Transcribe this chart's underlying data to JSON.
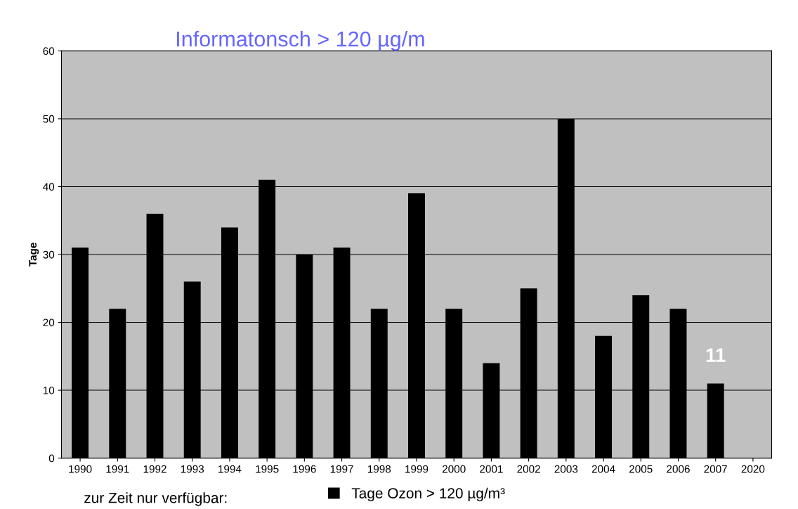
{
  "chart_data": {
    "type": "bar",
    "title": "Informatonsch > 120 µg/m",
    "ylabel": "Tage",
    "categories": [
      "1990",
      "1991",
      "1992",
      "1993",
      "1994",
      "1995",
      "1996",
      "1997",
      "1998",
      "1999",
      "2000",
      "2001",
      "2002",
      "2003",
      "2004",
      "2005",
      "2006",
      "2007",
      "2020"
    ],
    "series": [
      {
        "name": "Tage Ozon > 120 µg/m³",
        "color": "#000000",
        "values": [
          31,
          22,
          36,
          26,
          34,
          41,
          30,
          31,
          22,
          39,
          22,
          14,
          25,
          50,
          18,
          24,
          22,
          11,
          null
        ],
        "value_labels": [
          null,
          null,
          null,
          null,
          null,
          null,
          null,
          null,
          null,
          null,
          null,
          null,
          null,
          null,
          null,
          null,
          null,
          "11",
          null
        ]
      }
    ],
    "ylim": [
      0,
      60
    ],
    "yticks": [
      0,
      10,
      20,
      30,
      40,
      50,
      60
    ],
    "grid": "y",
    "legend": "bottom",
    "annotations": [
      "zur Zeit nur verfügbar:"
    ]
  }
}
